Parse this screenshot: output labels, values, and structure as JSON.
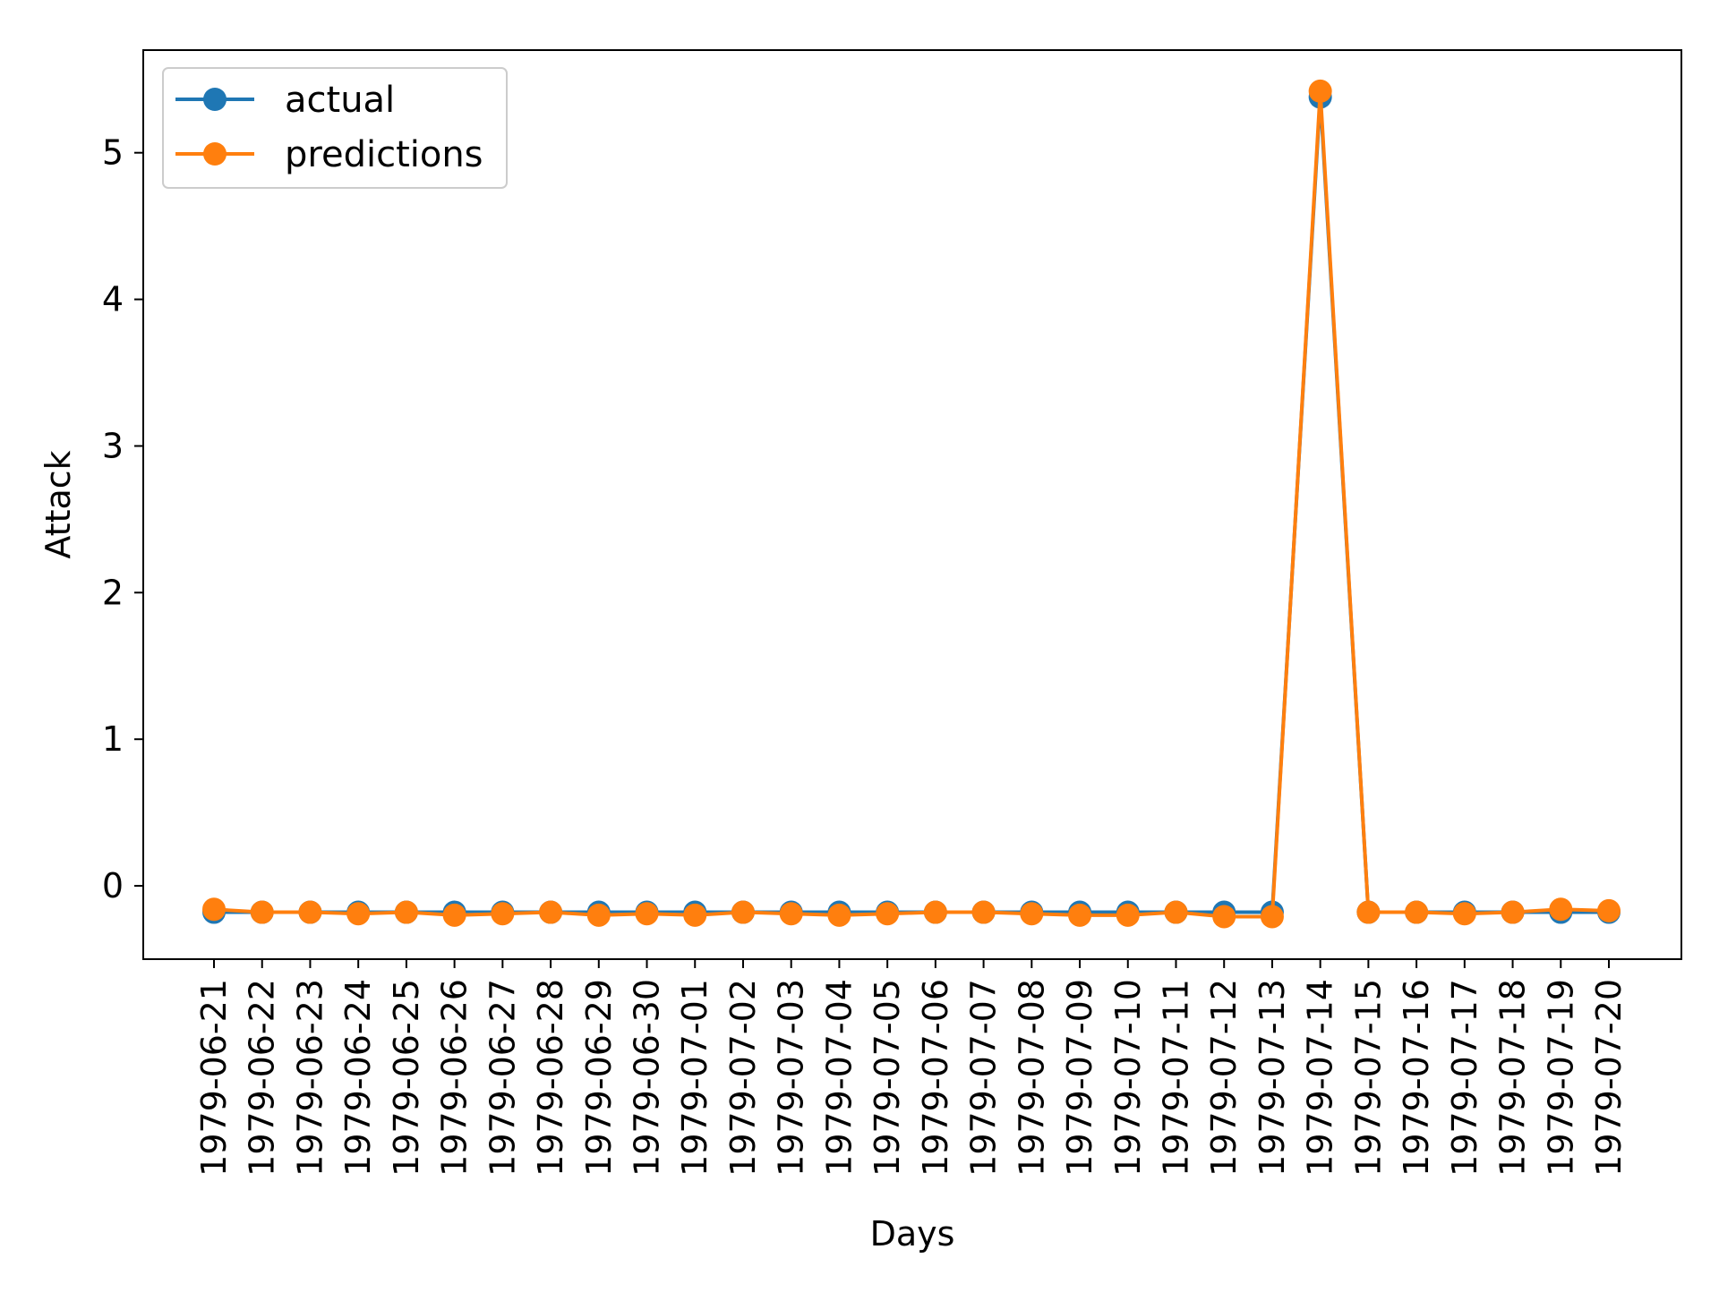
{
  "chart_data": {
    "type": "line",
    "title": "",
    "xlabel": "Days",
    "ylabel": "Attack",
    "categories": [
      "1979-06-21",
      "1979-06-22",
      "1979-06-23",
      "1979-06-24",
      "1979-06-25",
      "1979-06-26",
      "1979-06-27",
      "1979-06-28",
      "1979-06-29",
      "1979-06-30",
      "1979-07-01",
      "1979-07-02",
      "1979-07-03",
      "1979-07-04",
      "1979-07-05",
      "1979-07-06",
      "1979-07-07",
      "1979-07-08",
      "1979-07-09",
      "1979-07-10",
      "1979-07-11",
      "1979-07-12",
      "1979-07-13",
      "1979-07-14",
      "1979-07-15",
      "1979-07-16",
      "1979-07-17",
      "1979-07-18",
      "1979-07-19",
      "1979-07-20"
    ],
    "ylim": [
      -0.5,
      5.7
    ],
    "yticks": [
      0,
      1,
      2,
      3,
      4,
      5
    ],
    "grid": false,
    "legend_position": "top-left",
    "series": [
      {
        "name": "actual",
        "color": "#1f77b4",
        "marker": "circle",
        "values": [
          -0.18,
          -0.18,
          -0.18,
          -0.18,
          -0.18,
          -0.18,
          -0.18,
          -0.18,
          -0.18,
          -0.18,
          -0.18,
          -0.18,
          -0.18,
          -0.18,
          -0.18,
          -0.18,
          -0.18,
          -0.18,
          -0.18,
          -0.18,
          -0.18,
          -0.18,
          -0.18,
          5.38,
          -0.18,
          -0.18,
          -0.18,
          -0.18,
          -0.18,
          -0.18
        ]
      },
      {
        "name": "predictions",
        "color": "#ff7f0e",
        "marker": "circle",
        "values": [
          -0.16,
          -0.18,
          -0.18,
          -0.19,
          -0.18,
          -0.2,
          -0.19,
          -0.18,
          -0.2,
          -0.19,
          -0.2,
          -0.18,
          -0.19,
          -0.2,
          -0.19,
          -0.18,
          -0.18,
          -0.19,
          -0.2,
          -0.2,
          -0.18,
          -0.21,
          -0.21,
          5.42,
          -0.18,
          -0.18,
          -0.19,
          -0.18,
          -0.16,
          -0.17
        ]
      }
    ]
  }
}
